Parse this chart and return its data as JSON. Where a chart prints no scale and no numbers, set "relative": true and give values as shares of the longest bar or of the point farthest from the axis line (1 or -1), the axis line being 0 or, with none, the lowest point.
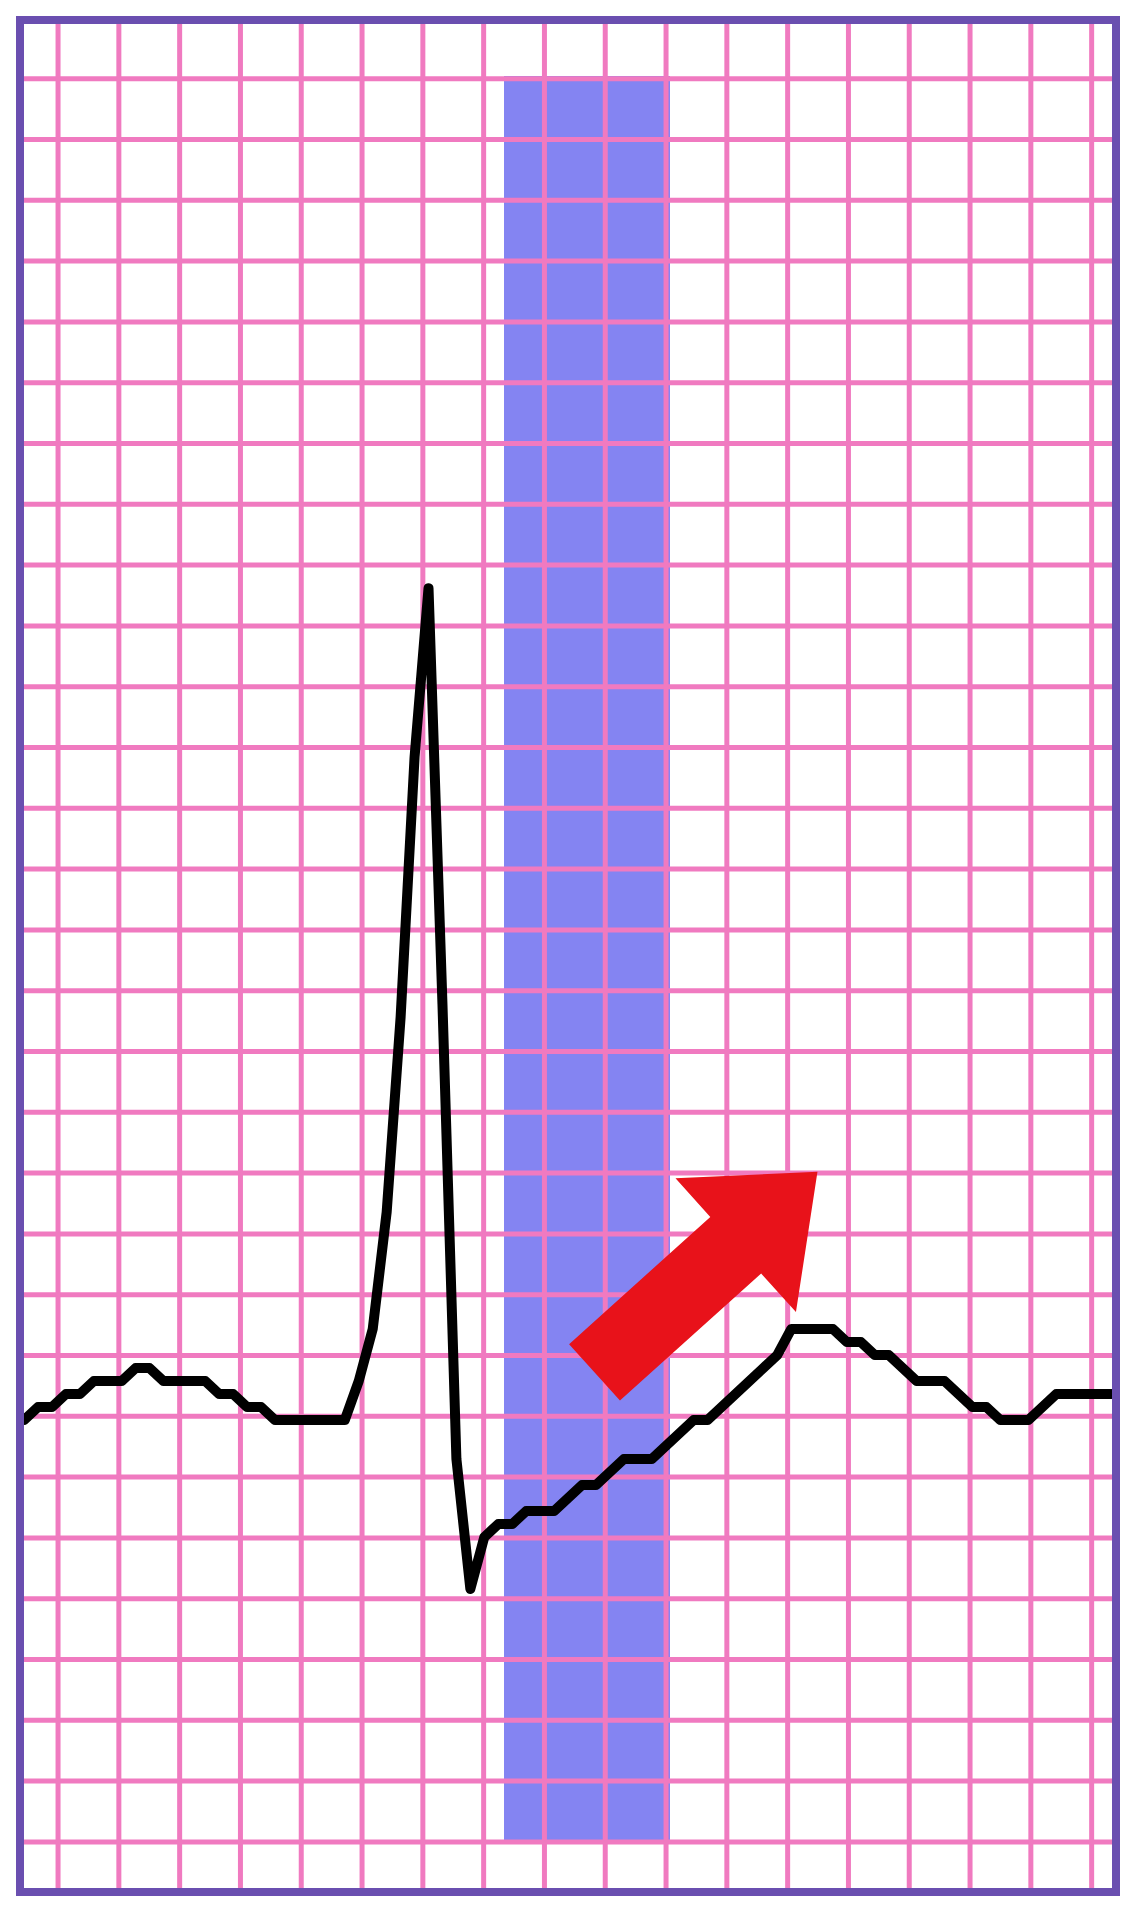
{
  "chart_data": {
    "type": "line",
    "relative": true,
    "grid": true,
    "categories": [
      null,
      null,
      null,
      null,
      null,
      null,
      null,
      null,
      null,
      null,
      null,
      null,
      null,
      null,
      null,
      null,
      null,
      null,
      null,
      null,
      null,
      null,
      null,
      null,
      null,
      null,
      null,
      null,
      null,
      null,
      null,
      null,
      null,
      null,
      null,
      null,
      null,
      null,
      null,
      null,
      null,
      null,
      null,
      null,
      null,
      null,
      null,
      null,
      null,
      null,
      null,
      null,
      null,
      null,
      null,
      null,
      null,
      null,
      null,
      null,
      null,
      null,
      null,
      null,
      null,
      null,
      null,
      null,
      null,
      null,
      null,
      null,
      null,
      null,
      null,
      null,
      null,
      null,
      null
    ],
    "series": [
      {
        "color": "#000000",
        "values": [
          0.36,
          0.37,
          0.37,
          0.38,
          0.38,
          0.39,
          0.39,
          0.39,
          0.4,
          0.4,
          0.39,
          0.39,
          0.39,
          0.39,
          0.38,
          0.38,
          0.37,
          0.37,
          0.36,
          0.36,
          0.36,
          0.36,
          0.36,
          0.36,
          0.39,
          0.43,
          0.52,
          0.67,
          0.87,
          1,
          0.68,
          0.33,
          0.23,
          0.27,
          0.28,
          0.28,
          0.29,
          0.29,
          0.29,
          0.3,
          0.31,
          0.31,
          0.32,
          0.33,
          0.33,
          0.33,
          0.34,
          0.35,
          0.36,
          0.36,
          0.37,
          0.38,
          0.39,
          0.4,
          0.41,
          0.43,
          0.43,
          0.43,
          0.43,
          0.42,
          0.42,
          0.41,
          0.41,
          0.4,
          0.39,
          0.39,
          0.39,
          0.38,
          0.37,
          0.37,
          0.36,
          0.36,
          0.36,
          0.37,
          0.38,
          0.38,
          0.38,
          0.38,
          0.38
        ]
      }
    ],
    "marker": "none",
    "line_style": "solid",
    "legend": false
  }
}
